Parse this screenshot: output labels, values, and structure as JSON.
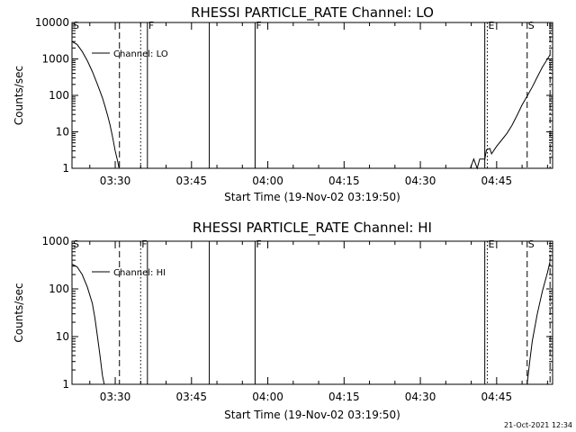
{
  "footer": {
    "timestamp": "21-Oct-2021 12:34"
  },
  "chart_data": [
    {
      "type": "line",
      "title": "RHESSI PARTICLE_RATE Channel: LO",
      "xlabel": "Start Time (19-Nov-02 03:19:50)",
      "ylabel": "Counts/sec",
      "yscale": "log",
      "xlim": [
        "03:21:30",
        "04:56:00"
      ],
      "ylim": [
        1,
        10000
      ],
      "x_ticks": [
        "03:30",
        "03:45",
        "04:00",
        "04:15",
        "04:30",
        "04:45"
      ],
      "y_ticks": [
        "1",
        "10",
        "100",
        "1000",
        "10000"
      ],
      "legend": {
        "position": "top-left",
        "entries": [
          "Channel: LO"
        ]
      },
      "series": [
        {
          "name": "Channel: LO",
          "segments": [
            [
              [
                "03:21:30",
                3000
              ],
              [
                "03:22:30",
                2500
              ],
              [
                "03:23:30",
                1600
              ],
              [
                "03:24:30",
                900
              ],
              [
                "03:25:30",
                450
              ],
              [
                "03:26:30",
                200
              ],
              [
                "03:27:30",
                85
              ],
              [
                "03:28:00",
                50
              ],
              [
                "03:28:30",
                28
              ],
              [
                "03:29:00",
                15
              ],
              [
                "03:29:30",
                7
              ],
              [
                "03:30:00",
                3
              ],
              [
                "03:30:30",
                1.5
              ],
              [
                "03:30:45",
                1
              ]
            ],
            [
              [
                "04:39:50",
                1
              ],
              [
                "04:40:30",
                1.8
              ],
              [
                "04:41:10",
                1
              ],
              [
                "04:41:40",
                1.8
              ],
              [
                "04:42:40",
                1.8
              ],
              [
                "04:43:00",
                3.2
              ],
              [
                "04:43:40",
                3.5
              ],
              [
                "04:44:00",
                2.5
              ],
              [
                "04:45:00",
                4
              ],
              [
                "04:46:00",
                6
              ],
              [
                "04:47:00",
                9
              ],
              [
                "04:48:00",
                15
              ],
              [
                "04:49:00",
                28
              ],
              [
                "04:50:00",
                55
              ],
              [
                "04:51:00",
                95
              ],
              [
                "04:52:00",
                170
              ],
              [
                "04:53:00",
                320
              ],
              [
                "04:54:00",
                600
              ],
              [
                "04:55:00",
                1000
              ],
              [
                "04:55:30",
                1300
              ]
            ]
          ]
        }
      ],
      "markers": [
        {
          "time": "03:21:30",
          "style": "solid",
          "label": "S"
        },
        {
          "time": "03:30:50",
          "style": "dashed",
          "label": ""
        },
        {
          "time": "03:35:00",
          "style": "dotted",
          "label": ""
        },
        {
          "time": "03:36:20",
          "style": "solid",
          "label": "F"
        },
        {
          "time": "03:48:30",
          "style": "solid",
          "label": ""
        },
        {
          "time": "03:57:30",
          "style": "solid",
          "label": "F"
        },
        {
          "time": "04:42:40",
          "style": "solid",
          "label": ""
        },
        {
          "time": "04:43:10",
          "style": "dotted",
          "label": "E"
        },
        {
          "time": "04:51:00",
          "style": "dashed",
          "label": "S"
        },
        {
          "time": "04:55:30",
          "style": "dashdot",
          "label": ""
        }
      ]
    },
    {
      "type": "line",
      "title": "RHESSI PARTICLE_RATE Channel: HI",
      "xlabel": "Start Time (19-Nov-02 03:19:50)",
      "ylabel": "Counts/sec",
      "yscale": "log",
      "xlim": [
        "03:21:30",
        "04:56:00"
      ],
      "ylim": [
        1,
        1000
      ],
      "x_ticks": [
        "03:30",
        "03:45",
        "04:00",
        "04:15",
        "04:30",
        "04:45"
      ],
      "y_ticks": [
        "1",
        "10",
        "100",
        "1000"
      ],
      "legend": {
        "position": "top-left",
        "entries": [
          "Channel: HI"
        ]
      },
      "series": [
        {
          "name": "Channel: HI",
          "segments": [
            [
              [
                "03:21:30",
                330
              ],
              [
                "03:22:30",
                290
              ],
              [
                "03:23:30",
                200
              ],
              [
                "03:24:30",
                110
              ],
              [
                "03:25:30",
                50
              ],
              [
                "03:26:00",
                25
              ],
              [
                "03:26:30",
                10
              ],
              [
                "03:27:00",
                4
              ],
              [
                "03:27:30",
                1.5
              ],
              [
                "03:27:50",
                1
              ]
            ],
            [
              [
                "04:51:00",
                1
              ],
              [
                "04:51:30",
                3
              ],
              [
                "04:52:00",
                8
              ],
              [
                "04:53:00",
                30
              ],
              [
                "04:54:00",
                90
              ],
              [
                "04:55:00",
                220
              ],
              [
                "04:55:30",
                380
              ]
            ]
          ]
        }
      ],
      "markers": [
        {
          "time": "03:21:30",
          "style": "solid",
          "label": "S"
        },
        {
          "time": "03:30:50",
          "style": "dashed",
          "label": ""
        },
        {
          "time": "03:35:00",
          "style": "dotted",
          "label": "F"
        },
        {
          "time": "03:36:20",
          "style": "solid",
          "label": ""
        },
        {
          "time": "03:48:30",
          "style": "solid",
          "label": ""
        },
        {
          "time": "03:57:30",
          "style": "solid",
          "label": "F"
        },
        {
          "time": "04:42:40",
          "style": "solid",
          "label": ""
        },
        {
          "time": "04:43:10",
          "style": "dotted",
          "label": "E"
        },
        {
          "time": "04:51:00",
          "style": "dashed",
          "label": "S"
        },
        {
          "time": "04:55:30",
          "style": "dashdot",
          "label": ""
        }
      ]
    }
  ]
}
